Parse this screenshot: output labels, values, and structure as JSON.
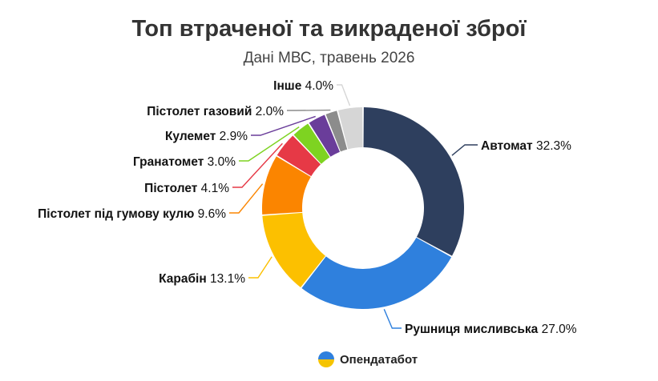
{
  "header": {
    "title": "Топ втраченої та викраденої зброї",
    "subtitle": "Дані МВС, травень 2026"
  },
  "brand": {
    "name": "Опендатабот",
    "icon": "opendatabot-logo-icon"
  },
  "chart_data": {
    "type": "pie",
    "variant": "donut",
    "title": "Топ втраченої та викраденої зброї",
    "subtitle": "Дані МВС, травень 2026",
    "unit": "%",
    "legend": "none",
    "slices": [
      {
        "name": "Автомат",
        "label": "32.3%",
        "value": 32.3,
        "color": "#2e3f5e"
      },
      {
        "name": "Рушниця мисливська",
        "label": "27.0%",
        "value": 27.0,
        "color": "#2f80dd"
      },
      {
        "name": "Карабін",
        "label": "13.1%",
        "value": 13.1,
        "color": "#fcc000"
      },
      {
        "name": "Пістолет під гумову кулю",
        "label": "9.6%",
        "value": 9.6,
        "color": "#fb8500"
      },
      {
        "name": "Пістолет",
        "label": "4.1%",
        "value": 4.1,
        "color": "#e63946"
      },
      {
        "name": "Гранатомет",
        "label": "3.0%",
        "value": 3.0,
        "color": "#7ed321"
      },
      {
        "name": "Кулемет",
        "label": "2.9%",
        "value": 2.9,
        "color": "#6a3d9a"
      },
      {
        "name": "Пістолет газовий",
        "label": "2.0%",
        "value": 2.0,
        "color": "#8c8c8c"
      },
      {
        "name": "Інше",
        "label": "4.0%",
        "value": 4.0,
        "color": "#d6d6d6"
      }
    ]
  }
}
